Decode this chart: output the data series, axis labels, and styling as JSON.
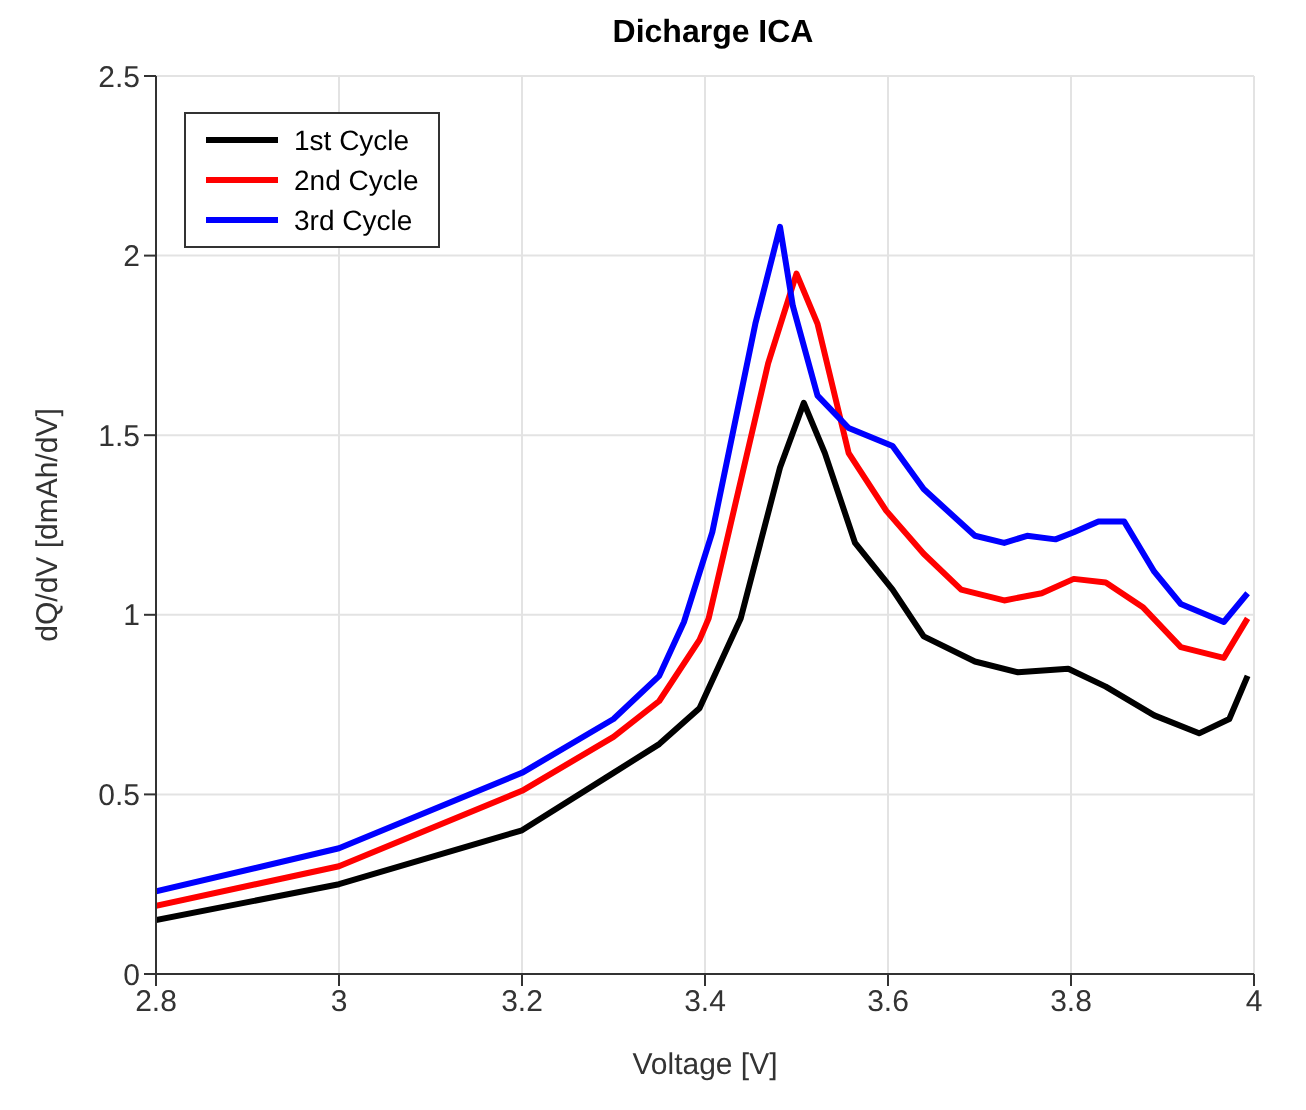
{
  "chart_data": {
    "type": "line",
    "title": "Dicharge ICA",
    "xlabel": "Voltage [V]",
    "ylabel": "dQ/dV [dmAh/dV]",
    "xlim": [
      2.8,
      4
    ],
    "xticks": [
      2.8,
      3,
      3.2,
      3.4,
      3.6,
      3.8,
      4
    ],
    "ylim": [
      0,
      2.5
    ],
    "yticks": [
      0,
      0.5,
      1,
      1.5,
      2,
      2.5
    ],
    "grid": true,
    "legend": "top left",
    "marker": "none",
    "line_style": "solid",
    "series": [
      {
        "name": "1st Cycle",
        "color": "#000000",
        "x": [
          2.8,
          3.0,
          3.2,
          3.3,
          3.35,
          3.394,
          3.439,
          3.482,
          3.508,
          3.531,
          3.564,
          3.605,
          3.639,
          3.695,
          3.742,
          3.797,
          3.838,
          3.891,
          3.94,
          3.973,
          3.993
        ],
        "values": [
          0.15,
          0.25,
          0.4,
          0.56,
          0.64,
          0.74,
          0.99,
          1.41,
          1.59,
          1.45,
          1.2,
          1.07,
          0.94,
          0.87,
          0.84,
          0.85,
          0.8,
          0.72,
          0.67,
          0.71,
          0.83
        ]
      },
      {
        "name": "2nd Cycle",
        "color": "#ff0000",
        "x": [
          2.8,
          3.0,
          3.2,
          3.3,
          3.35,
          3.394,
          3.404,
          3.469,
          3.5,
          3.523,
          3.557,
          3.598,
          3.639,
          3.68,
          3.727,
          3.768,
          3.803,
          3.838,
          3.879,
          3.92,
          3.967,
          3.993
        ],
        "values": [
          0.19,
          0.3,
          0.51,
          0.66,
          0.76,
          0.93,
          0.99,
          1.7,
          1.95,
          1.81,
          1.45,
          1.29,
          1.17,
          1.07,
          1.04,
          1.06,
          1.1,
          1.09,
          1.02,
          0.91,
          0.88,
          0.99
        ]
      },
      {
        "name": "3rd Cycle",
        "color": "#0000ff",
        "x": [
          2.8,
          3.0,
          3.2,
          3.3,
          3.35,
          3.377,
          3.408,
          3.455,
          3.482,
          3.496,
          3.523,
          3.557,
          3.605,
          3.639,
          3.695,
          3.727,
          3.752,
          3.783,
          3.803,
          3.83,
          3.858,
          3.891,
          3.92,
          3.967,
          3.993
        ],
        "values": [
          0.23,
          0.35,
          0.56,
          0.71,
          0.83,
          0.98,
          1.23,
          1.81,
          2.08,
          1.86,
          1.61,
          1.52,
          1.47,
          1.35,
          1.22,
          1.2,
          1.22,
          1.21,
          1.23,
          1.26,
          1.26,
          1.12,
          1.03,
          0.98,
          1.06
        ]
      }
    ]
  }
}
